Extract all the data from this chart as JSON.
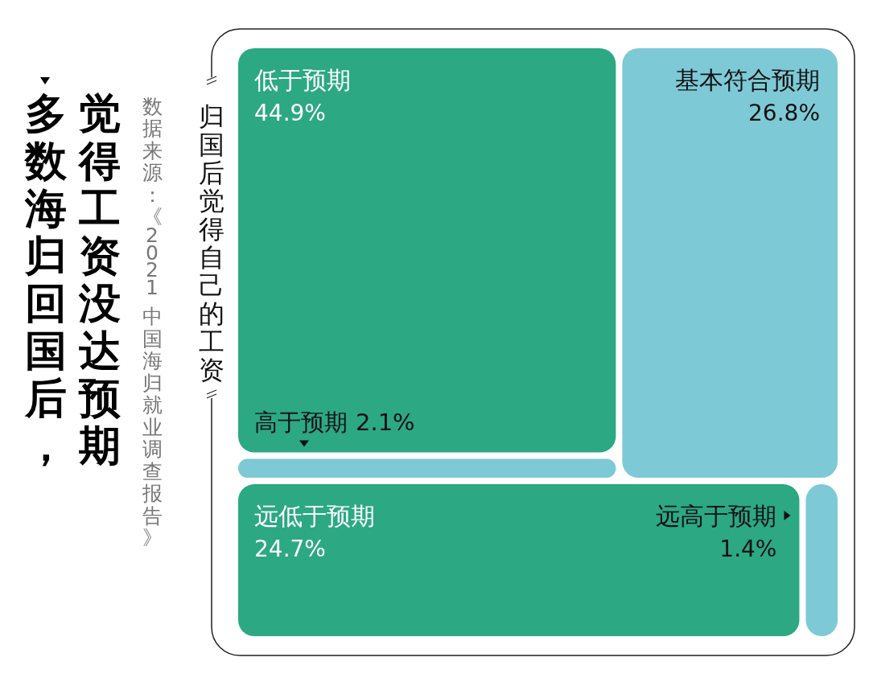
{
  "chart_data": {
    "type": "other",
    "title": "多数海归回国后，觉得工资没达预期",
    "subtitle": "归国后觉得自己的工资",
    "categories": [
      "低于预期",
      "基本符合预期",
      "高于预期",
      "远低于预期",
      "远高于预期"
    ],
    "values": [
      44.9,
      26.8,
      2.1,
      24.7,
      1.4
    ],
    "value_labels": [
      "44.9%",
      "26.8%",
      "2.1%",
      "24.7%",
      "1.4%"
    ],
    "colors": [
      "#2ca882",
      "#7ec9d6",
      "#7ec9d6",
      "#2ca882",
      "#7ec9d6"
    ],
    "annotations": [
      "数据来源：《2021 中国海归就业调查报告》"
    ]
  }
}
